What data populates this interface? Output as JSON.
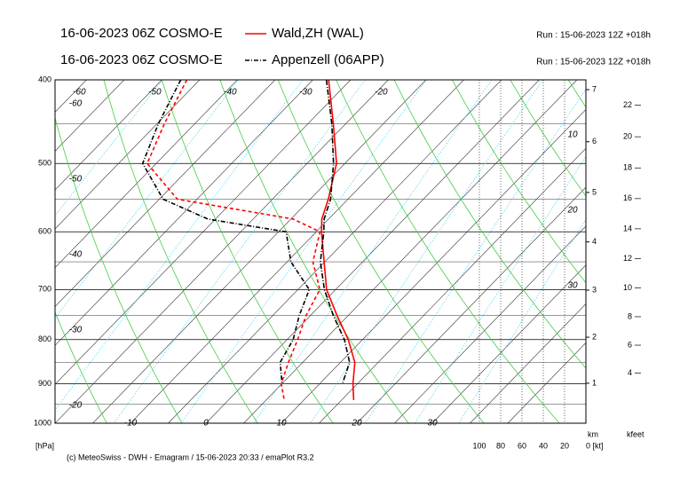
{
  "chart_data": {
    "type": "emagram",
    "pressure_levels": [
      400,
      450,
      500,
      550,
      580,
      600,
      650,
      700,
      750,
      800,
      850,
      900,
      940
    ],
    "series": [
      {
        "name": "Wald,ZH (WAL)",
        "model": "16-06-2023 06Z COSMO-E",
        "run": "Run : 15-06-2023 12Z +018h",
        "color": "#ff0000",
        "style": "solid",
        "temperature": [
          -27.9,
          -21.6,
          -16.1,
          -12.6,
          -10.9,
          -9.3,
          -5.1,
          -1.2,
          3.5,
          8.1,
          11.9,
          14.4,
          16.6
        ],
        "dewpoint": [
          -46.7,
          -44.0,
          -41.2,
          -32.6,
          -14.7,
          -9.5,
          -6.6,
          -2.1,
          -0.6,
          1.4,
          3.1,
          4.9,
          7.4
        ]
      },
      {
        "name": "Appenzell (06APP)",
        "model": "16-06-2023 06Z COSMO-E",
        "run": "Run : 15-06-2023 12Z +018h",
        "color": "#000000",
        "style": "dashdot",
        "temperature": [
          -28.2,
          -21.8,
          -16.5,
          -12.3,
          -10.6,
          -9.0,
          -5.6,
          -1.5,
          3.0,
          7.6,
          11.2,
          13.0,
          null
        ],
        "dewpoint": [
          -47.5,
          -44.8,
          -41.8,
          -34.5,
          -26.0,
          -14.0,
          -9.5,
          -3.5,
          -1.5,
          0.8,
          2.0,
          5.0,
          null
        ]
      }
    ],
    "ylim": [
      1000,
      400
    ],
    "yscale": "log",
    "yticks": [
      400,
      500,
      600,
      700,
      800,
      900,
      1000
    ],
    "y_axis_label": "[hPa]",
    "isotherms": [
      -110,
      -105,
      -100,
      -95,
      -90,
      -85,
      -80,
      -75,
      -70,
      -65,
      -60,
      -55,
      -50,
      -45,
      -40,
      -35,
      -30,
      -25,
      -20,
      -15,
      -10,
      -5,
      0,
      5,
      10,
      15,
      20,
      25,
      30,
      35,
      40
    ],
    "top_labels": [
      -60,
      -50,
      -40,
      -30,
      -20
    ],
    "side_labels": [
      -60,
      -50,
      -40,
      -30,
      -20
    ],
    "bottom_labels": [
      -10,
      0,
      10,
      20,
      30
    ],
    "mixing_labels": [
      10,
      20,
      30
    ],
    "km_ticks": [
      1,
      2,
      3,
      4,
      5,
      6,
      7
    ],
    "km_label": "km",
    "kfeet_ticks": [
      4,
      6,
      8,
      10,
      12,
      14,
      16,
      18,
      20,
      22
    ],
    "kfeet_label": "kfeet",
    "wind_ticks": [
      100,
      80,
      60,
      40,
      20,
      {
        "value": 0,
        "label": "0 [kt]"
      }
    ],
    "footer": "(c) MeteoSwiss - DWH - Emagram / 15-06-2023  20:33 / emaPlot R3.2"
  }
}
